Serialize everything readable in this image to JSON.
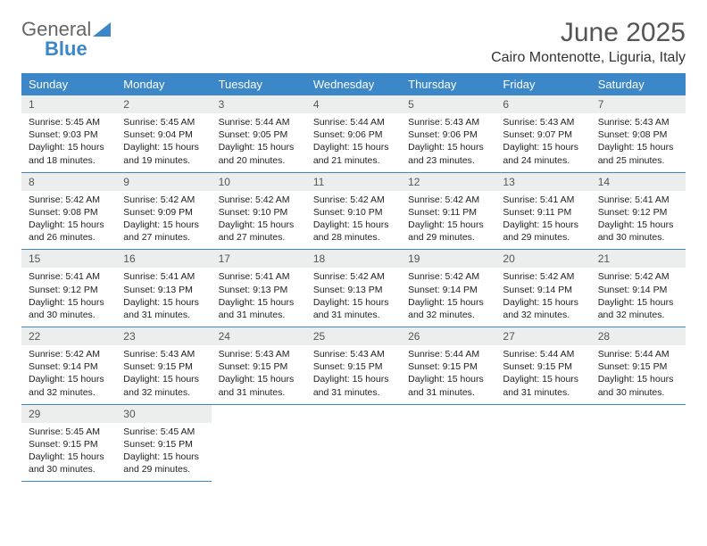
{
  "brand": {
    "part1": "General",
    "part2": "Blue"
  },
  "title": "June 2025",
  "location": "Cairo Montenotte, Liguria, Italy",
  "colors": {
    "header_bg": "#3b87c8",
    "header_fg": "#ffffff",
    "daynum_bg": "#eceded",
    "border": "#3b87c8",
    "page_bg": "#ffffff"
  },
  "type": "calendar-table",
  "columns": 7,
  "weekdays": [
    "Sunday",
    "Monday",
    "Tuesday",
    "Wednesday",
    "Thursday",
    "Friday",
    "Saturday"
  ],
  "font": {
    "family": "Arial",
    "body_size_pt": 8,
    "title_size_pt": 22,
    "location_size_pt": 12,
    "weekday_size_pt": 10
  },
  "days": [
    {
      "n": 1,
      "sunrise": "5:45 AM",
      "sunset": "9:03 PM",
      "daylight": "15 hours and 18 minutes."
    },
    {
      "n": 2,
      "sunrise": "5:45 AM",
      "sunset": "9:04 PM",
      "daylight": "15 hours and 19 minutes."
    },
    {
      "n": 3,
      "sunrise": "5:44 AM",
      "sunset": "9:05 PM",
      "daylight": "15 hours and 20 minutes."
    },
    {
      "n": 4,
      "sunrise": "5:44 AM",
      "sunset": "9:06 PM",
      "daylight": "15 hours and 21 minutes."
    },
    {
      "n": 5,
      "sunrise": "5:43 AM",
      "sunset": "9:06 PM",
      "daylight": "15 hours and 23 minutes."
    },
    {
      "n": 6,
      "sunrise": "5:43 AM",
      "sunset": "9:07 PM",
      "daylight": "15 hours and 24 minutes."
    },
    {
      "n": 7,
      "sunrise": "5:43 AM",
      "sunset": "9:08 PM",
      "daylight": "15 hours and 25 minutes."
    },
    {
      "n": 8,
      "sunrise": "5:42 AM",
      "sunset": "9:08 PM",
      "daylight": "15 hours and 26 minutes."
    },
    {
      "n": 9,
      "sunrise": "5:42 AM",
      "sunset": "9:09 PM",
      "daylight": "15 hours and 27 minutes."
    },
    {
      "n": 10,
      "sunrise": "5:42 AM",
      "sunset": "9:10 PM",
      "daylight": "15 hours and 27 minutes."
    },
    {
      "n": 11,
      "sunrise": "5:42 AM",
      "sunset": "9:10 PM",
      "daylight": "15 hours and 28 minutes."
    },
    {
      "n": 12,
      "sunrise": "5:42 AM",
      "sunset": "9:11 PM",
      "daylight": "15 hours and 29 minutes."
    },
    {
      "n": 13,
      "sunrise": "5:41 AM",
      "sunset": "9:11 PM",
      "daylight": "15 hours and 29 minutes."
    },
    {
      "n": 14,
      "sunrise": "5:41 AM",
      "sunset": "9:12 PM",
      "daylight": "15 hours and 30 minutes."
    },
    {
      "n": 15,
      "sunrise": "5:41 AM",
      "sunset": "9:12 PM",
      "daylight": "15 hours and 30 minutes."
    },
    {
      "n": 16,
      "sunrise": "5:41 AM",
      "sunset": "9:13 PM",
      "daylight": "15 hours and 31 minutes."
    },
    {
      "n": 17,
      "sunrise": "5:41 AM",
      "sunset": "9:13 PM",
      "daylight": "15 hours and 31 minutes."
    },
    {
      "n": 18,
      "sunrise": "5:42 AM",
      "sunset": "9:13 PM",
      "daylight": "15 hours and 31 minutes."
    },
    {
      "n": 19,
      "sunrise": "5:42 AM",
      "sunset": "9:14 PM",
      "daylight": "15 hours and 32 minutes."
    },
    {
      "n": 20,
      "sunrise": "5:42 AM",
      "sunset": "9:14 PM",
      "daylight": "15 hours and 32 minutes."
    },
    {
      "n": 21,
      "sunrise": "5:42 AM",
      "sunset": "9:14 PM",
      "daylight": "15 hours and 32 minutes."
    },
    {
      "n": 22,
      "sunrise": "5:42 AM",
      "sunset": "9:14 PM",
      "daylight": "15 hours and 32 minutes."
    },
    {
      "n": 23,
      "sunrise": "5:43 AM",
      "sunset": "9:15 PM",
      "daylight": "15 hours and 32 minutes."
    },
    {
      "n": 24,
      "sunrise": "5:43 AM",
      "sunset": "9:15 PM",
      "daylight": "15 hours and 31 minutes."
    },
    {
      "n": 25,
      "sunrise": "5:43 AM",
      "sunset": "9:15 PM",
      "daylight": "15 hours and 31 minutes."
    },
    {
      "n": 26,
      "sunrise": "5:44 AM",
      "sunset": "9:15 PM",
      "daylight": "15 hours and 31 minutes."
    },
    {
      "n": 27,
      "sunrise": "5:44 AM",
      "sunset": "9:15 PM",
      "daylight": "15 hours and 31 minutes."
    },
    {
      "n": 28,
      "sunrise": "5:44 AM",
      "sunset": "9:15 PM",
      "daylight": "15 hours and 30 minutes."
    },
    {
      "n": 29,
      "sunrise": "5:45 AM",
      "sunset": "9:15 PM",
      "daylight": "15 hours and 30 minutes."
    },
    {
      "n": 30,
      "sunrise": "5:45 AM",
      "sunset": "9:15 PM",
      "daylight": "15 hours and 29 minutes."
    }
  ],
  "labels": {
    "sunrise": "Sunrise:",
    "sunset": "Sunset:",
    "daylight": "Daylight:"
  },
  "start_weekday_index": 0,
  "trailing_empty": 5
}
